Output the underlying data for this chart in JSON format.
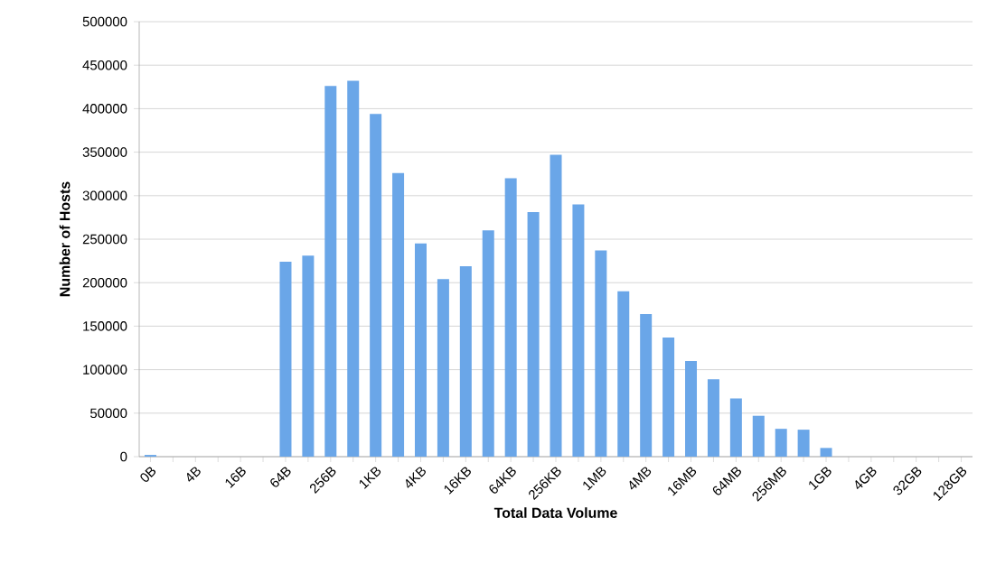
{
  "chart_data": {
    "type": "bar",
    "xlabel": "Total Data Volume",
    "ylabel": "Number of Hosts",
    "categories": [
      "0B",
      null,
      "4B",
      null,
      "16B",
      null,
      "64B",
      null,
      "256B",
      null,
      "1KB",
      null,
      "4KB",
      null,
      "16KB",
      null,
      "64KB",
      null,
      "256KB",
      null,
      "1MB",
      null,
      "4MB",
      null,
      "16MB",
      null,
      "64MB",
      null,
      "256MB",
      null,
      "1GB",
      null,
      "4GB",
      null,
      "32GB",
      null,
      "128GB"
    ],
    "values": [
      2000,
      0,
      0,
      0,
      0,
      0,
      224000,
      231000,
      426000,
      432000,
      394000,
      326000,
      245000,
      204000,
      219000,
      260000,
      320000,
      281000,
      347000,
      290000,
      237000,
      190000,
      164000,
      137000,
      110000,
      89000,
      67000,
      47000,
      32000,
      31000,
      10000,
      0,
      0,
      0,
      0,
      0,
      0
    ],
    "color": "#6aa6e8",
    "ylim": [
      0,
      500000
    ],
    "yticks": [
      0,
      50000,
      100000,
      150000,
      200000,
      250000,
      300000,
      350000,
      400000,
      450000,
      500000
    ],
    "grid": "y"
  }
}
